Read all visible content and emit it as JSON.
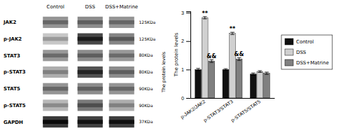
{
  "chart_data": [
    {
      "type": "blot",
      "ylabel": "The protein levels",
      "columns": [
        "Control",
        "DSS",
        "DSS+Matrine"
      ],
      "categories": [
        "JAK2",
        "p-JAK2",
        "STAT3",
        "p-STAT3",
        "STAT5",
        "p-STAT5",
        "GAPDH"
      ],
      "kda": [
        "125KDa",
        "125KDa",
        "80KDa",
        "80KDa",
        "90KDa",
        "90KDa",
        "37KDa"
      ],
      "values": [
        [
          0.58,
          0.55,
          0.58
        ],
        [
          0.78,
          0.28,
          0.52
        ],
        [
          0.6,
          0.55,
          0.6
        ],
        [
          0.68,
          0.32,
          0.55
        ],
        [
          0.58,
          0.55,
          0.58
        ],
        [
          0.72,
          0.48,
          0.68
        ],
        [
          0.22,
          0.25,
          0.24
        ]
      ]
    },
    {
      "type": "bar",
      "ylabel": "The protein levels",
      "categories": [
        "p-JAK2/JAK2",
        "p-STAT3/STAT3",
        "p-STAT5/STAT5"
      ],
      "series": [
        {
          "name": "Control",
          "color": "#111111",
          "values": [
            1.0,
            1.0,
            0.84
          ],
          "errors": [
            0.04,
            0.03,
            0.04
          ]
        },
        {
          "name": "DSS",
          "color": "#d0d0d0",
          "values": [
            2.82,
            2.27,
            0.93
          ],
          "errors": [
            0.04,
            0.04,
            0.03
          ]
        },
        {
          "name": "DSS+Matrine",
          "color": "#808080",
          "values": [
            1.3,
            1.37,
            0.87
          ],
          "errors": [
            0.05,
            0.05,
            0.04
          ]
        }
      ],
      "ylim": [
        0,
        3.05
      ],
      "yticks": [
        0,
        1,
        2,
        3
      ],
      "legend": "right",
      "annotations": [
        {
          "text": "**",
          "category": "p-JAK2/JAK2",
          "series": "DSS"
        },
        {
          "text": "**",
          "category": "p-STAT3/STAT3",
          "series": "DSS"
        },
        {
          "text": "&&",
          "category": "p-JAK2/JAK2",
          "series": "DSS+Matrine"
        },
        {
          "text": "&&",
          "category": "p-STAT3/STAT3",
          "series": "DSS+Matrine"
        }
      ]
    }
  ]
}
